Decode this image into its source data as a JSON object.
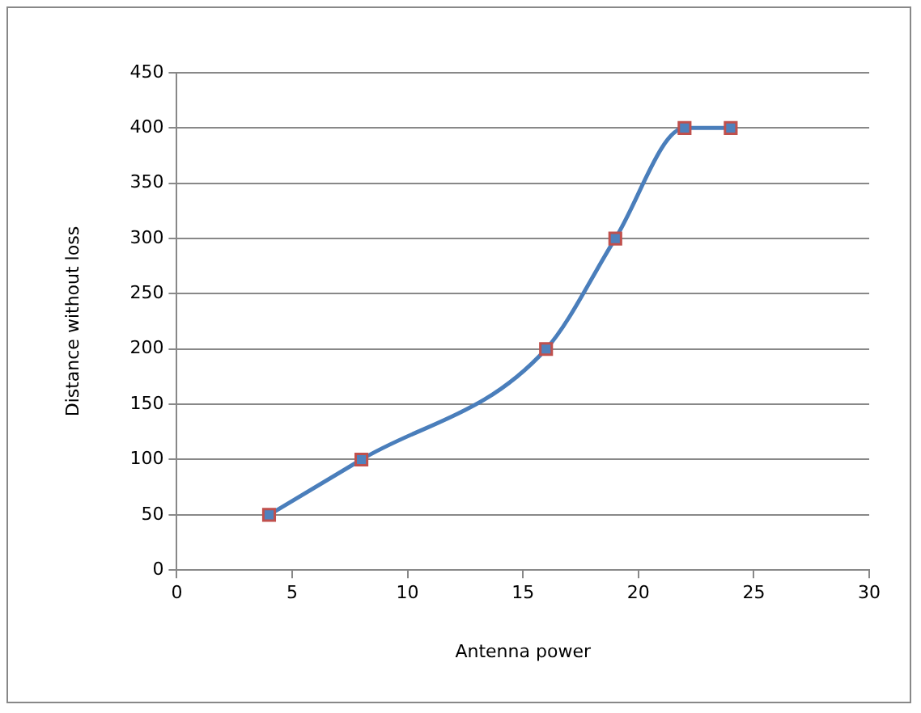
{
  "chart_data": {
    "type": "line",
    "xlabel": "Antenna power",
    "ylabel": "Distance without loss",
    "x": [
      4,
      8,
      16,
      19,
      22,
      24
    ],
    "series": [
      {
        "color": "#4a7ebb",
        "values": [
          50,
          100,
          200,
          300,
          400,
          400
        ]
      }
    ],
    "xlim": [
      0,
      30
    ],
    "xticks": [
      0,
      5,
      10,
      15,
      20,
      25,
      30
    ],
    "ylim": [
      0,
      450
    ],
    "yticks": [
      0,
      50,
      100,
      150,
      200,
      250,
      300,
      350,
      400,
      450
    ],
    "grid": "y",
    "legend": false,
    "marker": "square",
    "line_style": "solid"
  }
}
